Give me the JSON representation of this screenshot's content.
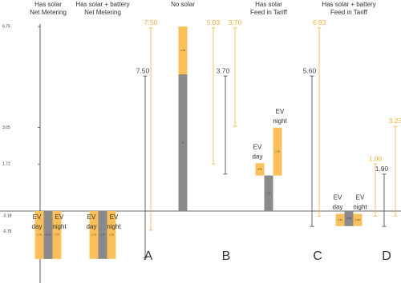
{
  "chart_data": {
    "type": "floating-bar",
    "yticks": [
      6.75,
      3.05,
      1.72,
      -0.18,
      -0.75
    ],
    "groups": [
      {
        "header": [
          "Has solar",
          "Net Metering"
        ],
        "bars": [
          {
            "label": [
              "EV",
              "day"
            ],
            "color": "#fbc05a",
            "start": 0,
            "end": -1.75,
            "value": 1.75
          },
          {
            "color": "#8a8a8a",
            "start": 0,
            "end": -1.75,
            "value": 1.75
          },
          {
            "label": [
              "EV",
              "night"
            ],
            "color": "#fbc05a",
            "start": 0,
            "end": -1.75,
            "value": 1.75
          }
        ]
      },
      {
        "header": [
          "Has solar + battery",
          "Net Metering"
        ],
        "bars": [
          {
            "label": [
              "EV",
              "day"
            ],
            "color": "#fbc05a",
            "start": 0,
            "end": -1.75,
            "value": 1.75
          },
          {
            "color": "#8a8a8a",
            "start": 0,
            "end": -1.75,
            "value": 1.75
          },
          {
            "label": [
              "EV",
              "night"
            ],
            "color": "#fbc05a",
            "start": 0,
            "end": -1.75,
            "value": 1.75
          }
        ]
      },
      {
        "header": [
          "No solar"
        ],
        "bars": [
          {
            "color": "#8a8a8a",
            "start": 0,
            "end": 5.0,
            "value": 5.0
          },
          {
            "color": "#fbc05a",
            "start": 5.0,
            "end": 6.75,
            "value": 1.75
          }
        ]
      },
      {
        "header": [
          "Has solar",
          "Feed in Tariff"
        ],
        "bars": [
          {
            "label": [
              "EV",
              "day"
            ],
            "color": "#fbc05a",
            "start": 1.3,
            "end": 1.75,
            "value": 0.45
          },
          {
            "color": "#8a8a8a",
            "start": 0,
            "end": 1.3,
            "value": 1.3
          },
          {
            "label": [
              "EV",
              "night"
            ],
            "color": "#fbc05a",
            "start": 1.3,
            "end": 3.05,
            "value": 1.75
          }
        ]
      },
      {
        "header": [
          "Has solar + battery",
          "Feed in Tariff"
        ],
        "bars": [
          {
            "label": [
              "EV",
              "day"
            ],
            "color": "#fbc05a",
            "start": -0.1,
            "end": -0.55,
            "value": 0.45
          },
          {
            "color": "#8a8a8a",
            "start": 0,
            "end": -0.55,
            "value": 0.55
          },
          {
            "label": [
              "EV",
              "night"
            ],
            "color": "#fbc05a",
            "start": -0.1,
            "end": -0.55,
            "value": 0.45
          }
        ]
      }
    ],
    "ranges": [
      {
        "color": "#444444",
        "from": 4.94,
        "to": -1.7,
        "value": "7.50"
      },
      {
        "color": "#f5b040",
        "from": 6.7,
        "to": -0.7,
        "value": "7.50"
      },
      {
        "color": "#f5b040",
        "from": 6.7,
        "to": 1.72,
        "value": "5.03"
      },
      {
        "color": "#f5b040",
        "from": 6.7,
        "to": 3.1,
        "value": "3.70"
      },
      {
        "color": "#444444",
        "from": 4.94,
        "to": 1.35,
        "value": "3.70"
      },
      {
        "color": "#444444",
        "from": 4.94,
        "to": -0.56,
        "value": "5.60"
      },
      {
        "color": "#f5b040",
        "from": 6.7,
        "to": -0.18,
        "value": "6.93"
      },
      {
        "color": "#f5b040",
        "from": 1.72,
        "to": -0.18,
        "value": "1.90"
      },
      {
        "color": "#444444",
        "from": 1.35,
        "to": -0.56,
        "value": "1.90"
      },
      {
        "color": "#f5b040",
        "from": 3.1,
        "to": -0.18,
        "value": "3.23"
      }
    ],
    "letters": [
      "A",
      "B",
      "C",
      "D"
    ]
  }
}
